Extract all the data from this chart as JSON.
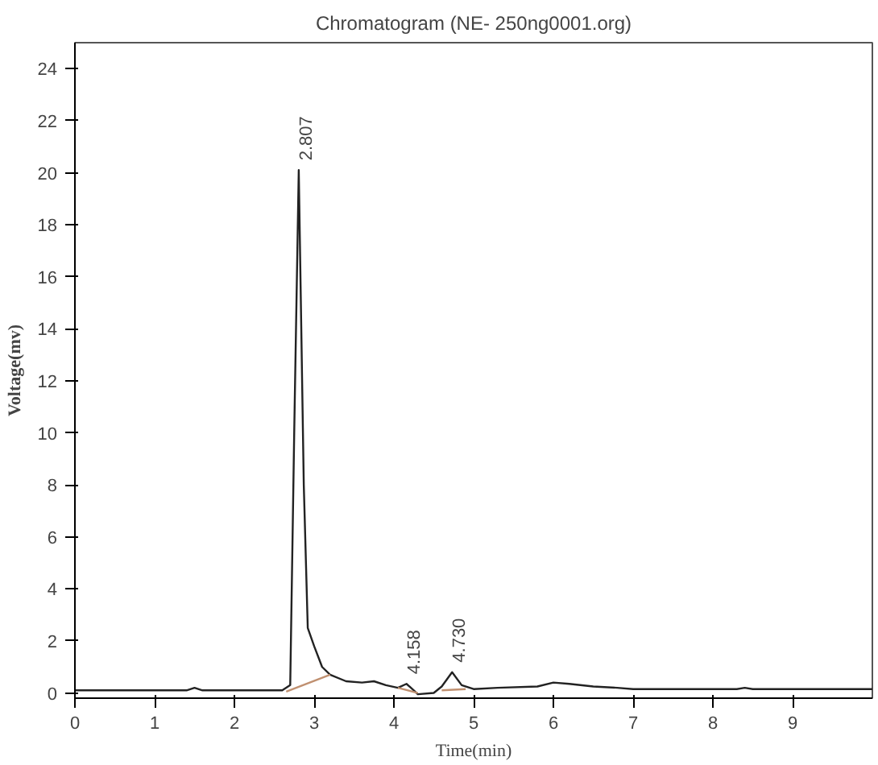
{
  "chart_data": {
    "type": "line",
    "title": "Chromatogram (NE- 250ng0001.org)",
    "xlabel": "Time(min)",
    "ylabel": "Voltage(mv)",
    "xlim": [
      0,
      10
    ],
    "ylim": [
      -0.2,
      25
    ],
    "xticks": [
      0,
      1,
      2,
      3,
      4,
      5,
      6,
      7,
      8,
      9
    ],
    "yticks": [
      0,
      2,
      4,
      6,
      8,
      10,
      12,
      14,
      16,
      18,
      20,
      22,
      24
    ],
    "grid": false,
    "series": [
      {
        "color": "#222222",
        "x": [
          0,
          1.4,
          1.5,
          1.6,
          2.6,
          2.7,
          2.75,
          2.807,
          2.87,
          2.92,
          3.0,
          3.1,
          3.2,
          3.4,
          3.6,
          3.75,
          3.9,
          4.05,
          4.158,
          4.25,
          4.3,
          4.5,
          4.6,
          4.73,
          4.85,
          5.0,
          5.3,
          5.8,
          6.0,
          6.2,
          6.5,
          6.8,
          7.0,
          8.3,
          8.4,
          8.5,
          10
        ],
        "values": [
          0.1,
          0.1,
          0.2,
          0.1,
          0.1,
          0.3,
          10,
          20.1,
          8,
          2.5,
          1.8,
          1.0,
          0.7,
          0.45,
          0.4,
          0.45,
          0.3,
          0.2,
          0.35,
          0.1,
          -0.05,
          0.0,
          0.25,
          0.8,
          0.3,
          0.15,
          0.2,
          0.25,
          0.4,
          0.35,
          0.25,
          0.2,
          0.15,
          0.15,
          0.2,
          0.15,
          0.15
        ]
      },
      {
        "color": "#c09070",
        "x": [
          2.65,
          3.2
        ],
        "values": [
          0.05,
          0.7
        ]
      },
      {
        "color": "#c09070",
        "x": [
          4.05,
          4.3
        ],
        "values": [
          0.2,
          0.0
        ]
      },
      {
        "color": "#c09070",
        "x": [
          4.6,
          4.9
        ],
        "values": [
          0.1,
          0.15
        ]
      }
    ],
    "annotations": [
      {
        "text": "2.807",
        "x": 2.807,
        "y": 20.1
      },
      {
        "text": "4.158",
        "x": 4.158,
        "y": 0.35
      },
      {
        "text": "4.730",
        "x": 4.73,
        "y": 0.8
      }
    ]
  }
}
